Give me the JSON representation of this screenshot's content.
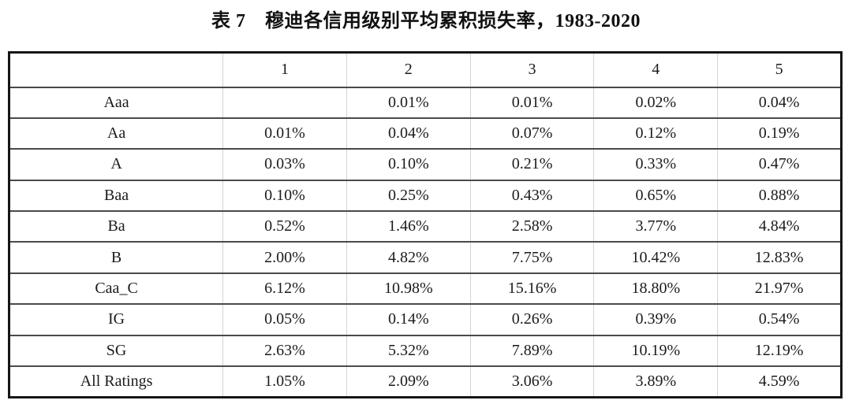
{
  "caption": "表 7　穆迪各信用级别平均累积损失率，1983-2020",
  "table": {
    "columns": [
      "",
      "1",
      "2",
      "3",
      "4",
      "5"
    ],
    "rows": [
      {
        "label": "Aaa",
        "values": [
          "",
          "0.01%",
          "0.01%",
          "0.02%",
          "0.04%"
        ]
      },
      {
        "label": "Aa",
        "values": [
          "0.01%",
          "0.04%",
          "0.07%",
          "0.12%",
          "0.19%"
        ]
      },
      {
        "label": "A",
        "values": [
          "0.03%",
          "0.10%",
          "0.21%",
          "0.33%",
          "0.47%"
        ]
      },
      {
        "label": "Baa",
        "values": [
          "0.10%",
          "0.25%",
          "0.43%",
          "0.65%",
          "0.88%"
        ]
      },
      {
        "label": "Ba",
        "values": [
          "0.52%",
          "1.46%",
          "2.58%",
          "3.77%",
          "4.84%"
        ]
      },
      {
        "label": "B",
        "values": [
          "2.00%",
          "4.82%",
          "7.75%",
          "10.42%",
          "12.83%"
        ]
      },
      {
        "label": "Caa_C",
        "values": [
          "6.12%",
          "10.98%",
          "15.16%",
          "18.80%",
          "21.97%"
        ]
      },
      {
        "label": "IG",
        "values": [
          "0.05%",
          "0.14%",
          "0.26%",
          "0.39%",
          "0.54%"
        ]
      },
      {
        "label": "SG",
        "values": [
          "2.63%",
          "5.32%",
          "7.89%",
          "10.19%",
          "12.19%"
        ]
      },
      {
        "label": "All Ratings",
        "values": [
          "1.05%",
          "2.09%",
          "3.06%",
          "3.89%",
          "4.59%"
        ]
      }
    ]
  },
  "colors": {
    "outer_border": "#161616",
    "row_line": "#4a4a4a",
    "column_line": "#d4d4d4",
    "text": "#1b1b1b",
    "background": "#ffffff"
  }
}
